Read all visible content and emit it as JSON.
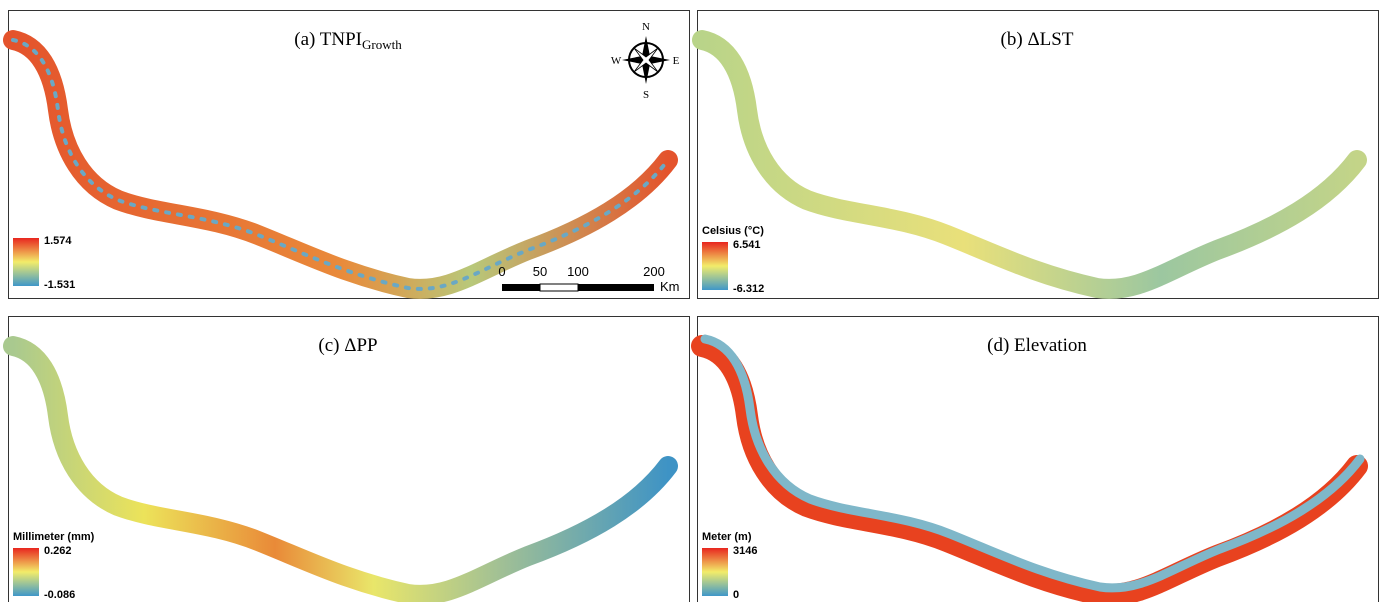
{
  "panels": [
    {
      "title": "(a) TNPI",
      "title_sub": "Growth",
      "legend": {
        "max": "1.574",
        "min": "-1.531"
      }
    },
    {
      "title": "(b) ΔLST",
      "legend": {
        "unit": "Celsius (°C)",
        "max": "6.541",
        "min": "-6.312"
      }
    },
    {
      "title": "(c) ΔPP",
      "legend": {
        "unit": "Millimeter (mm)",
        "max": "0.262",
        "min": "-0.086"
      }
    },
    {
      "title": "(d) Elevation",
      "legend": {
        "unit": "Meter (m)",
        "max": "3146",
        "min": "0"
      }
    }
  ],
  "compass": {
    "n": "N",
    "s": "S",
    "e": "E",
    "w": "W"
  },
  "scale_bar": {
    "ticks": [
      "0",
      "50",
      "100",
      "200"
    ],
    "unit": "Km"
  }
}
